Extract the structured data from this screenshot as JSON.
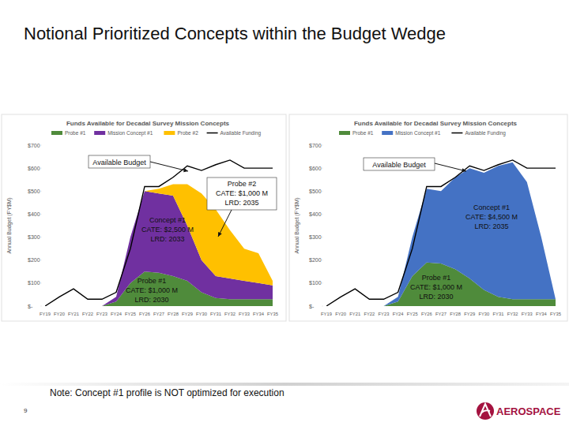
{
  "title": "Notional Prioritized Concepts within the Budget Wedge",
  "note": "Note:  Concept #1 profile is NOT optimized for execution",
  "page_number": "9",
  "logo": "AEROSPACE",
  "chart_data": [
    {
      "type": "area",
      "stacked": true,
      "legend": "top",
      "grid": false,
      "title": "Funds Available for Decadal Survey Mission Concepts",
      "y_label": "Annual Budget (FY$M)",
      "categories": [
        "FY19",
        "FY20",
        "FY21",
        "FY22",
        "FY23",
        "FY24",
        "FY25",
        "FY26",
        "FY27",
        "FY28",
        "FY29",
        "FY30",
        "FY31",
        "FY32",
        "FY33",
        "FY34",
        "FY35"
      ],
      "ylim": [
        0,
        700
      ],
      "yticks": [
        {
          "value": 0,
          "label": "$-"
        },
        {
          "value": 100,
          "label": "$100"
        },
        {
          "value": 200,
          "label": "$200"
        },
        {
          "value": 300,
          "label": "$300"
        },
        {
          "value": 400,
          "label": "$400"
        },
        {
          "value": 500,
          "label": "$500"
        },
        {
          "value": 600,
          "label": "$600"
        },
        {
          "value": 700,
          "label": "$700"
        }
      ],
      "series": [
        {
          "name": "Probe #1",
          "type": "area",
          "color": "#4f8b3b",
          "values": [
            0,
            0,
            0,
            0,
            0,
            20,
            100,
            150,
            145,
            130,
            110,
            60,
            35,
            30,
            30,
            30,
            30
          ]
        },
        {
          "name": "Mission Concept #1",
          "type": "area",
          "color": "#7030a0",
          "values": [
            0,
            0,
            0,
            0,
            0,
            20,
            200,
            350,
            345,
            350,
            240,
            140,
            95,
            90,
            80,
            70,
            60
          ]
        },
        {
          "name": "Probe #2",
          "type": "area",
          "color": "#ffc000",
          "values": [
            0,
            0,
            0,
            0,
            0,
            0,
            0,
            0,
            20,
            50,
            180,
            290,
            290,
            210,
            140,
            130,
            20
          ]
        },
        {
          "name": "Available Funding",
          "type": "line",
          "color": "#000000",
          "values": [
            0,
            40,
            75,
            30,
            30,
            60,
            250,
            520,
            520,
            560,
            610,
            590,
            615,
            635,
            600,
            600,
            600
          ]
        }
      ],
      "annotations": [
        {
          "lines": [
            "Available Budget"
          ]
        },
        {
          "lines": [
            "Probe #2",
            "CATE:  $1,000 M",
            "LRD:  2035"
          ]
        },
        {
          "lines": [
            "Concept #1",
            "CATE:  $2,500 M",
            "LRD:  2033"
          ]
        },
        {
          "lines": [
            "Probe #1",
            "CATE:  $1,000 M",
            "LRD:  2030"
          ]
        }
      ]
    },
    {
      "type": "area",
      "stacked": true,
      "legend": "top",
      "grid": false,
      "title": "Funds Available for Decadal Survey Mission Concepts",
      "y_label": "Annual Budget (FY$M)",
      "categories": [
        "FY19",
        "FY20",
        "FY21",
        "FY22",
        "FY23",
        "FY24",
        "FY25",
        "FY26",
        "FY27",
        "FY28",
        "FY29",
        "FY30",
        "FY31",
        "FY32",
        "FY33",
        "FY34",
        "FY35"
      ],
      "ylim": [
        0,
        700
      ],
      "yticks": [
        {
          "value": 0,
          "label": "$-"
        },
        {
          "value": 100,
          "label": "$100"
        },
        {
          "value": 200,
          "label": "$200"
        },
        {
          "value": 300,
          "label": "$300"
        },
        {
          "value": 400,
          "label": "$400"
        },
        {
          "value": 500,
          "label": "$500"
        },
        {
          "value": 600,
          "label": "$600"
        },
        {
          "value": 700,
          "label": "$700"
        }
      ],
      "series": [
        {
          "name": "Probe #1",
          "type": "area",
          "color": "#4f8b3b",
          "values": [
            0,
            0,
            0,
            0,
            0,
            20,
            130,
            190,
            185,
            160,
            120,
            70,
            40,
            30,
            30,
            30,
            30
          ]
        },
        {
          "name": "Mission Concept #1",
          "type": "area",
          "color": "#4472c4",
          "values": [
            0,
            0,
            0,
            0,
            0,
            20,
            170,
            320,
            315,
            400,
            480,
            510,
            570,
            595,
            510,
            270,
            0
          ]
        },
        {
          "name": "Available Funding",
          "type": "line",
          "color": "#000000",
          "values": [
            0,
            40,
            75,
            30,
            30,
            60,
            250,
            520,
            520,
            560,
            610,
            590,
            615,
            635,
            600,
            600,
            600
          ]
        }
      ],
      "annotations": [
        {
          "lines": [
            "Available Budget"
          ]
        },
        {
          "lines": [
            "Concept #1",
            "CATE:  $4,500 M",
            "LRD:  2035"
          ]
        },
        {
          "lines": [
            "Probe #1",
            "CATE:  $1,000 M",
            "LRD:  2030"
          ]
        }
      ]
    }
  ]
}
